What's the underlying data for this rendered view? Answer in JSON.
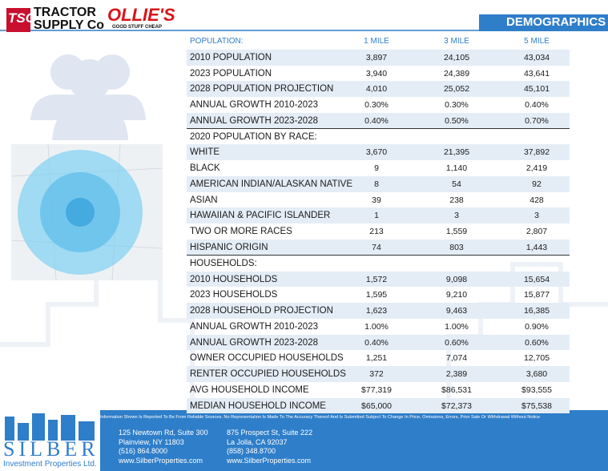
{
  "header": {
    "logo_tsc": "TSC",
    "logo_tractor": "TRACTOR",
    "logo_supply": "SUPPLY Co",
    "logo_ollies": "OLLIE'S",
    "logo_ollies_tag": "GOOD STUFF CHEAP",
    "title": "DEMOGRAPHICS"
  },
  "table": {
    "columns": [
      "POPULATION:",
      "1 MILE",
      "3 MILE",
      "5 MILE"
    ],
    "rows": [
      [
        "2010 POPULATION",
        "3,897",
        "24,105",
        "43,034"
      ],
      [
        "2023 POPULATION",
        "3,940",
        "24,389",
        "43,641"
      ],
      [
        "2028 POPULATION PROJECTION",
        "4,010",
        "25,052",
        "45,101"
      ],
      [
        "ANNUAL GROWTH 2010-2023",
        "0.30%",
        "0.30%",
        "0.40%"
      ],
      [
        "ANNUAL GROWTH 2023-2028",
        "0.40%",
        "0.50%",
        "0.70%"
      ],
      [
        "2020 POPULATION BY RACE:"
      ],
      [
        "WHITE",
        "3,670",
        "21,395",
        "37,892"
      ],
      [
        "BLACK",
        "9",
        "1,140",
        "2,419"
      ],
      [
        "AMERICAN INDIAN/ALASKAN NATIVE",
        "8",
        "54",
        "92"
      ],
      [
        "ASIAN",
        "39",
        "238",
        "428"
      ],
      [
        "HAWAIIAN & PACIFIC ISLANDER",
        "1",
        "3",
        "3"
      ],
      [
        "TWO OR MORE RACES",
        "213",
        "1,559",
        "2,807"
      ],
      [
        "HISPANIC ORIGIN",
        "74",
        "803",
        "1,443"
      ],
      [
        "HOUSEHOLDS:"
      ],
      [
        "2010 HOUSEHOLDS",
        "1,572",
        "9,098",
        "15,654"
      ],
      [
        "2023 HOUSEHOLDS",
        "1,595",
        "9,210",
        "15,877"
      ],
      [
        "2028 HOUSEHOLD PROJECTION",
        "1,623",
        "9,463",
        "16,385"
      ],
      [
        "ANNUAL GROWTH 2010-2023",
        "1.00%",
        "1.00%",
        "0.90%"
      ],
      [
        "ANNUAL GROWTH 2023-2028",
        "0.40%",
        "0.60%",
        "0.60%"
      ],
      [
        "OWNER OCCUPIED HOUSEHOLDS",
        "1,251",
        "7,074",
        "12,705"
      ],
      [
        "RENTER OCCUPIED HOUSEHOLDS",
        "372",
        "2,389",
        "3,680"
      ],
      [
        "AVG HOUSEHOLD INCOME",
        "$77,319",
        "$86,531",
        "$93,555"
      ],
      [
        "MEDIAN HOUSEHOLD INCOME",
        "$65,000",
        "$72,373",
        "$75,538"
      ]
    ]
  },
  "footer": {
    "disclaimer": "Information Shown Is Reported To Be From Reliable Sources. No Representation Is Made To The Accuracy Thereof And Is Submitted Subject To Change In Price, Omissions, Errors, Prior Sale Or Withdrawal Without Notice",
    "logo_name": "SILBER",
    "logo_sub": "Investment Properties Ltd.",
    "office1": [
      "125 Newtown Rd, Suite 300",
      "Plainview, NY 11803",
      "(516) 864.8000",
      "www.SilberProperties.com"
    ],
    "office2": [
      "875 Prospect St, Suite 222",
      "La Jolla, CA 92037",
      "(858) 348.8700",
      "www.SilberProperties.com"
    ]
  }
}
